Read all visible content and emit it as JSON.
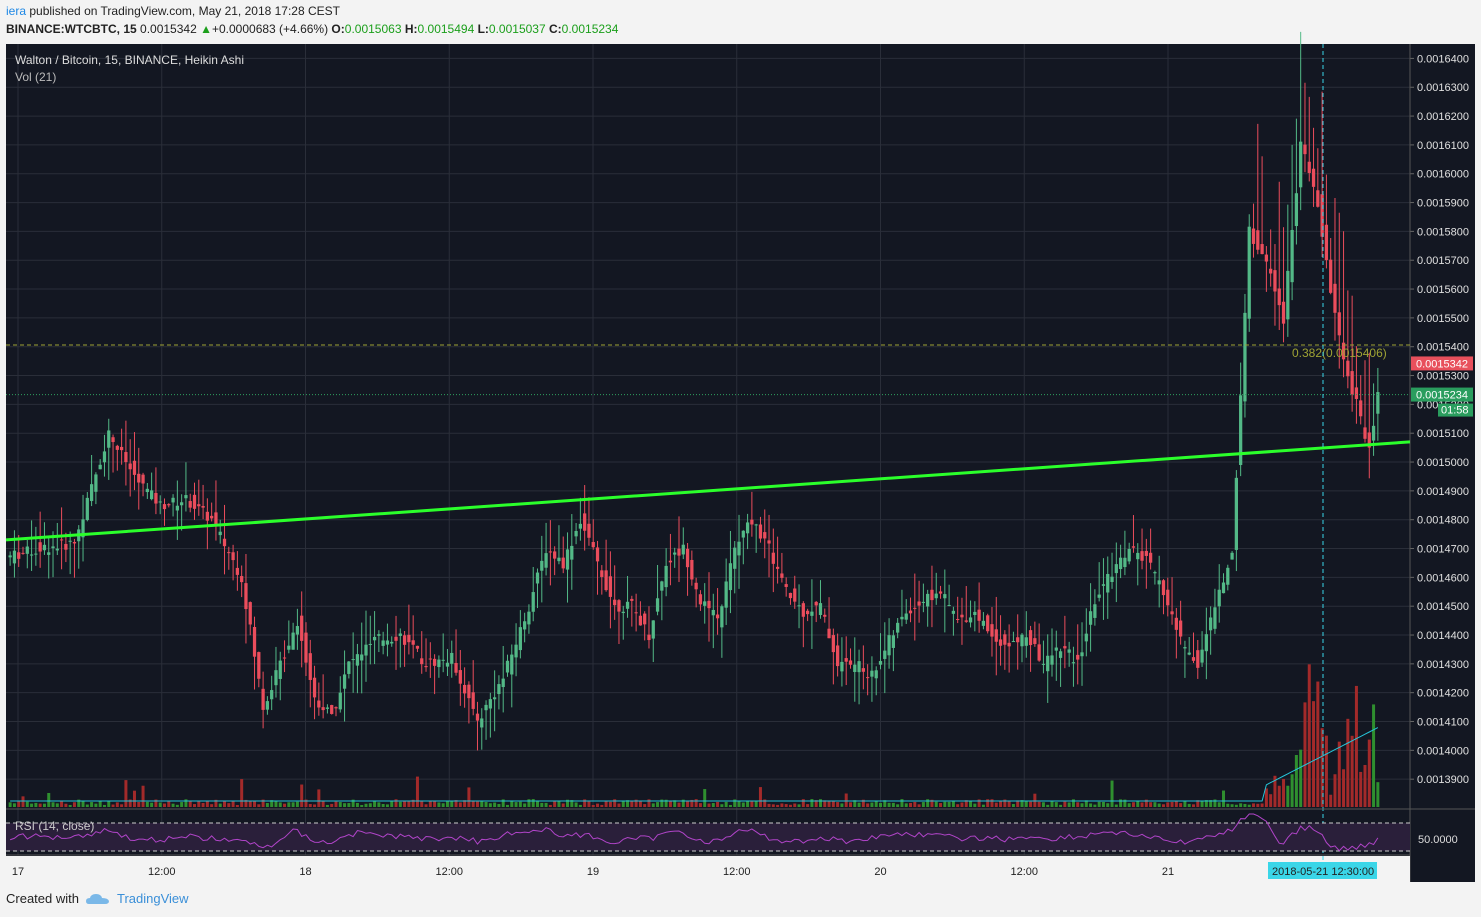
{
  "header": {
    "author": "iera",
    "published_text": "published on TradingView.com, May 21, 2018 17:28 CEST",
    "symbol_interval": "BINANCE:WTCBTC, 15",
    "last": "0.0015342",
    "change": "+0.0000683 (+4.66%)",
    "o_label": "O:",
    "o_value": "0.0015063",
    "h_label": "H:",
    "h_value": "0.0015494",
    "l_label": "L:",
    "l_value": "0.0015037",
    "c_label": "C:",
    "c_value": "0.0015234"
  },
  "pane": {
    "title": "Walton / Bitcoin, 15, BINANCE, Heikin Ashi",
    "volume_label": "Vol (21)",
    "rsi_label": "RSI (14, close)",
    "rsi_value": "50.0000"
  },
  "markers": {
    "current_price_badge": "0.0015342",
    "close_price_badge": "0.0015234",
    "countdown_badge": "01:58",
    "fib_label": "0.382(0.0015406)",
    "cursor_date": "2018-05-21 12:30:00"
  },
  "footer": {
    "created_with": "Created with",
    "brand": "TradingView"
  },
  "colors": {
    "background": "#131722",
    "grid": "#2a2e39",
    "up_candle": "#53b987",
    "down_candle": "#eb4d5c",
    "trendline": "#2bff2b",
    "fib_line": "#9fa334",
    "rsi_line": "#b044c8",
    "volume_ma": "#26c6da"
  },
  "chart_data": {
    "type": "candlestick",
    "style": "Heikin Ashi",
    "y_axis": {
      "min": 0.00138,
      "max": 0.001645,
      "ticks": [
        "0.0016400",
        "0.0016300",
        "0.0016200",
        "0.0016100",
        "0.0016000",
        "0.0015900",
        "0.0015800",
        "0.0015700",
        "0.0015600",
        "0.0015500",
        "0.0015400",
        "0.0015300",
        "0.0015200",
        "0.0015100",
        "0.0015000",
        "0.0014900",
        "0.0014800",
        "0.0014700",
        "0.0014600",
        "0.0014500",
        "0.0014400",
        "0.0014300",
        "0.0014200",
        "0.0014100",
        "0.0014000",
        "0.0013900"
      ]
    },
    "x_axis": {
      "labels": [
        "17",
        "12:00",
        "18",
        "12:00",
        "19",
        "12:00",
        "20",
        "12:00",
        "21"
      ]
    },
    "price_path": [
      [
        0,
        0.001467
      ],
      [
        8,
        0.00147
      ],
      [
        16,
        0.001472
      ],
      [
        24,
        0.00151
      ],
      [
        30,
        0.001495
      ],
      [
        36,
        0.001485
      ],
      [
        42,
        0.001487
      ],
      [
        48,
        0.00148
      ],
      [
        55,
        0.00146
      ],
      [
        60,
        0.001415
      ],
      [
        64,
        0.00143
      ],
      [
        68,
        0.001445
      ],
      [
        72,
        0.001418
      ],
      [
        76,
        0.001412
      ],
      [
        80,
        0.00143
      ],
      [
        86,
        0.001438
      ],
      [
        92,
        0.00144
      ],
      [
        98,
        0.00143
      ],
      [
        104,
        0.001432
      ],
      [
        110,
        0.00141
      ],
      [
        116,
        0.001425
      ],
      [
        122,
        0.00145
      ],
      [
        126,
        0.00147
      ],
      [
        130,
        0.001465
      ],
      [
        134,
        0.00148
      ],
      [
        138,
        0.001465
      ],
      [
        142,
        0.00145
      ],
      [
        146,
        0.00145
      ],
      [
        150,
        0.00144
      ],
      [
        154,
        0.001465
      ],
      [
        158,
        0.00147
      ],
      [
        162,
        0.001452
      ],
      [
        166,
        0.001445
      ],
      [
        170,
        0.00147
      ],
      [
        174,
        0.00148
      ],
      [
        178,
        0.00147
      ],
      [
        182,
        0.001455
      ],
      [
        186,
        0.001448
      ],
      [
        190,
        0.00145
      ],
      [
        194,
        0.00143
      ],
      [
        198,
        0.00143
      ],
      [
        202,
        0.001426
      ],
      [
        206,
        0.001438
      ],
      [
        210,
        0.001448
      ],
      [
        214,
        0.001452
      ],
      [
        218,
        0.001455
      ],
      [
        222,
        0.001445
      ],
      [
        226,
        0.001448
      ],
      [
        230,
        0.00144
      ],
      [
        234,
        0.001436
      ],
      [
        238,
        0.00144
      ],
      [
        242,
        0.00143
      ],
      [
        246,
        0.001436
      ],
      [
        250,
        0.00143
      ],
      [
        254,
        0.001452
      ],
      [
        258,
        0.001462
      ],
      [
        262,
        0.00147
      ],
      [
        266,
        0.001466
      ],
      [
        270,
        0.001455
      ],
      [
        274,
        0.001438
      ],
      [
        278,
        0.00143
      ],
      [
        282,
        0.00145
      ],
      [
        286,
        0.001468
      ],
      [
        290,
        0.00158
      ],
      [
        294,
        0.00157
      ],
      [
        298,
        0.00155
      ],
      [
        302,
        0.00161
      ],
      [
        306,
        0.00159
      ],
      [
        310,
        0.00155
      ],
      [
        314,
        0.001525
      ],
      [
        318,
        0.001505
      ],
      [
        320,
        0.001523
      ]
    ],
    "close": 0.0015234,
    "open": 0.0015063,
    "high": 0.0015494,
    "low": 0.0015037,
    "trendline": {
      "start": 0.001473,
      "end": 0.001507
    },
    "fib_level": 0.0015406,
    "volume_ma_peak": "late session spike on 21",
    "rsi": {
      "upper": 70,
      "lower": 30,
      "mid": 50
    }
  }
}
